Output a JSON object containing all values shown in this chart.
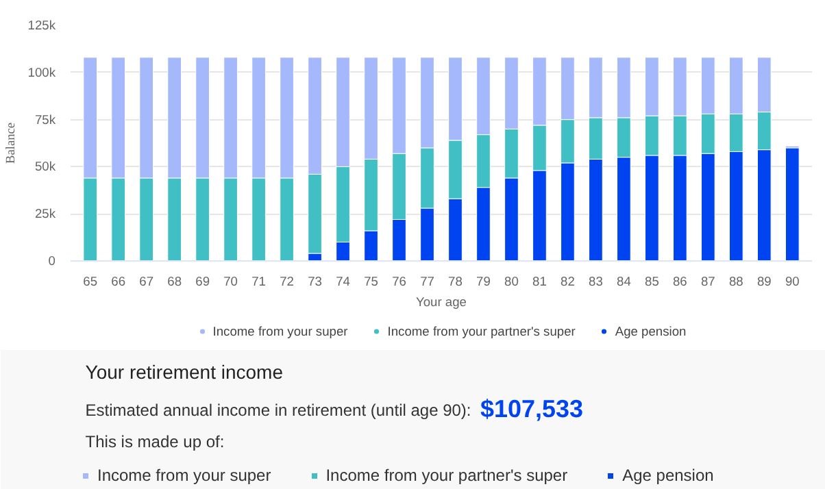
{
  "chart_data": {
    "type": "bar",
    "stacked": true,
    "xlabel": "Your age",
    "ylabel": "Balance",
    "categories": [
      "65",
      "66",
      "67",
      "68",
      "69",
      "70",
      "71",
      "72",
      "73",
      "74",
      "75",
      "76",
      "77",
      "78",
      "79",
      "80",
      "81",
      "82",
      "83",
      "84",
      "85",
      "86",
      "87",
      "88",
      "89",
      "90"
    ],
    "series": [
      {
        "name": "Age pension",
        "color": "#0043f0",
        "values": [
          0,
          0,
          0,
          0,
          0,
          0,
          0,
          0,
          4,
          10,
          16,
          22,
          28,
          33,
          39,
          44,
          48,
          52,
          54,
          55,
          56,
          56,
          57,
          58,
          59,
          60
        ]
      },
      {
        "name": "Income from your partner's super",
        "color": "#40bfc4",
        "values": [
          44,
          44,
          44,
          44,
          44,
          44,
          44,
          44,
          42,
          40,
          38,
          35,
          32,
          31,
          28,
          26,
          24,
          23,
          22,
          21,
          21,
          21,
          21,
          20,
          20,
          0
        ]
      },
      {
        "name": "Income from your super",
        "color": "#a5b8fb",
        "values": [
          64,
          64,
          64,
          64,
          64,
          64,
          64,
          64,
          62,
          58,
          54,
          51,
          48,
          44,
          41,
          38,
          36,
          33,
          32,
          32,
          31,
          31,
          30,
          30,
          29,
          1
        ]
      }
    ],
    "ylim": [
      0,
      125
    ],
    "yticks": [
      {
        "value": 0,
        "label": "0"
      },
      {
        "value": 25,
        "label": "25k"
      },
      {
        "value": 50,
        "label": "50k"
      },
      {
        "value": 75,
        "label": "75k"
      },
      {
        "value": 100,
        "label": "100k"
      },
      {
        "value": 125,
        "label": "125k"
      }
    ],
    "grid": "y",
    "legend": "bottom",
    "annotations": [
      "Your retirement income",
      "Estimated annual income in retirement (until age 90):",
      "$107,533",
      "This is made up of:"
    ]
  }
}
